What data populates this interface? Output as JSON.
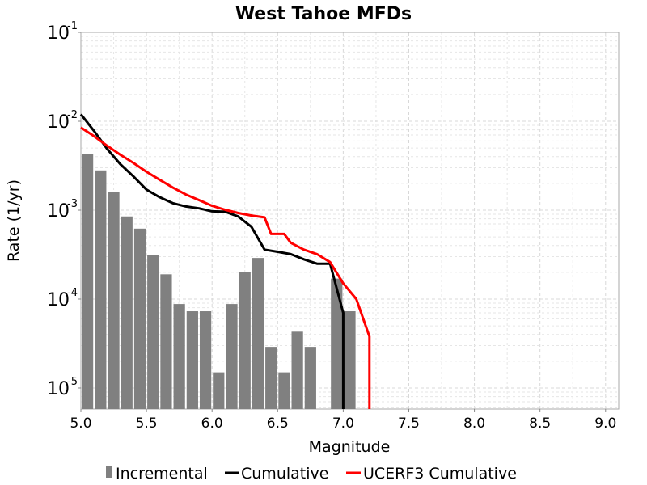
{
  "chart_data": {
    "type": "bar+line",
    "title": "West Tahoe MFDs",
    "xlabel": "Magnitude",
    "ylabel": "Rate (1/yr)",
    "xlim": [
      5.0,
      9.1
    ],
    "ylim": [
      5.8e-06,
      0.1
    ],
    "yscale": "log",
    "grid": true,
    "legend_position": "bottom",
    "x_ticks": [
      "5.0",
      "5.5",
      "6.0",
      "6.5",
      "7.0",
      "7.5",
      "8.0",
      "8.5",
      "9.0"
    ],
    "y_ticks": [
      {
        "base": "10",
        "exp": "-1",
        "value": 0.1
      },
      {
        "base": "10",
        "exp": "-2",
        "value": 0.01
      },
      {
        "base": "10",
        "exp": "-3",
        "value": 0.001
      },
      {
        "base": "10",
        "exp": "-4",
        "value": 0.0001
      },
      {
        "base": "10",
        "exp": "-5",
        "value": 1e-05
      }
    ],
    "series": [
      {
        "name": "Incremental",
        "type": "bar",
        "color": "#808080",
        "bar_width": 0.1,
        "x": [
          5.05,
          5.15,
          5.25,
          5.35,
          5.45,
          5.55,
          5.65,
          5.75,
          5.85,
          5.95,
          6.05,
          6.15,
          6.25,
          6.35,
          6.45,
          6.55,
          6.65,
          6.75,
          6.85,
          6.95,
          7.05
        ],
        "values": [
          0.0043,
          0.0028,
          0.0016,
          0.00085,
          0.00062,
          0.00031,
          0.00019,
          8.8e-05,
          7.3e-05,
          7.3e-05,
          1.5e-05,
          8.8e-05,
          0.0002,
          0.00029,
          2.9e-05,
          1.5e-05,
          4.3e-05,
          2.9e-05,
          null,
          0.00017,
          7.3e-05
        ]
      },
      {
        "name": "Cumulative",
        "type": "line",
        "color": "#000000",
        "x": [
          5.0,
          5.1,
          5.2,
          5.3,
          5.4,
          5.5,
          5.6,
          5.7,
          5.8,
          5.9,
          6.0,
          6.1,
          6.2,
          6.3,
          6.4,
          6.5,
          6.6,
          6.7,
          6.8,
          6.9,
          7.0,
          7.0
        ],
        "values": [
          0.012,
          0.0078,
          0.0049,
          0.0033,
          0.0024,
          0.0017,
          0.0014,
          0.0012,
          0.0011,
          0.00105,
          0.00097,
          0.00096,
          0.00085,
          0.00065,
          0.00036,
          0.00034,
          0.00032,
          0.00028,
          0.00025,
          0.00025,
          7e-05,
          5.8e-06
        ]
      },
      {
        "name": "UCERF3 Cumulative",
        "type": "line",
        "color": "#ff0000",
        "x": [
          5.0,
          5.1,
          5.2,
          5.3,
          5.4,
          5.5,
          5.6,
          5.7,
          5.8,
          5.9,
          6.0,
          6.1,
          6.2,
          6.3,
          6.4,
          6.45,
          6.55,
          6.6,
          6.7,
          6.8,
          6.9,
          7.0,
          7.1,
          7.2,
          7.2
        ],
        "values": [
          0.0085,
          0.0068,
          0.0053,
          0.0042,
          0.0034,
          0.0027,
          0.0022,
          0.0018,
          0.0015,
          0.0013,
          0.00112,
          0.00101,
          0.00093,
          0.00087,
          0.00083,
          0.00054,
          0.00054,
          0.00043,
          0.00036,
          0.00032,
          0.00026,
          0.00015,
          0.0001,
          3.8e-05,
          5.8e-06
        ]
      }
    ]
  }
}
